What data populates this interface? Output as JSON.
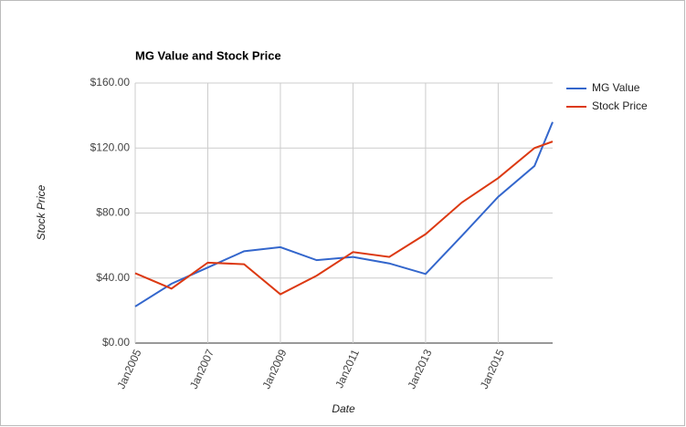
{
  "chart_data": {
    "type": "line",
    "title": "MG Value and Stock Price",
    "x_label": "Date",
    "y_label": "Stock Price",
    "x": [
      "2005-01",
      "2006-01",
      "2007-01",
      "2008-01",
      "2009-01",
      "2010-01",
      "2011-01",
      "2012-01",
      "2013-01",
      "2014-01",
      "2015-01",
      "2016-01",
      "2016-07"
    ],
    "series": [
      {
        "name": "MG Value",
        "color": "#3366cc",
        "values": [
          22.5,
          36.5,
          46.5,
          56.5,
          59,
          51,
          53,
          49,
          42.5,
          66,
          90,
          109,
          136
        ]
      },
      {
        "name": "Stock Price",
        "color": "#dc3912",
        "values": [
          43,
          33.5,
          49.5,
          48.5,
          30,
          41.5,
          56,
          53,
          67,
          86.5,
          101.5,
          120,
          124
        ]
      }
    ],
    "xlim": [
      "2005-01",
      "2016-07"
    ],
    "xticks": [
      {
        "value": "2005-01",
        "label": "Jan2005"
      },
      {
        "value": "2007-01",
        "label": "Jan2007"
      },
      {
        "value": "2009-01",
        "label": "Jan2009"
      },
      {
        "value": "2011-01",
        "label": "Jan2011"
      },
      {
        "value": "2013-01",
        "label": "Jan2013"
      },
      {
        "value": "2015-01",
        "label": "Jan2015"
      }
    ],
    "ylim": [
      0,
      160
    ],
    "yticks": [
      {
        "value": 0,
        "label": "$0.00"
      },
      {
        "value": 40,
        "label": "$40.00"
      },
      {
        "value": 80,
        "label": "$80.00"
      },
      {
        "value": 120,
        "label": "$120.00"
      },
      {
        "value": 160,
        "label": "$160.00"
      }
    ],
    "grid": true,
    "legend": "right"
  }
}
